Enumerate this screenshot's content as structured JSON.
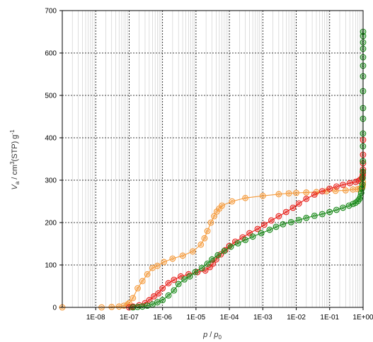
{
  "chart_data": {
    "type": "scatter",
    "title": "",
    "x_scale": "log",
    "xlim": [
      1e-09,
      1
    ],
    "ylim": [
      0,
      700
    ],
    "xlabel": {
      "main": "p",
      "sep": " / ",
      "base": "p",
      "sub": "0"
    },
    "ylabel": {
      "main": "V",
      "sub": "a",
      "unit_pre": " / cm",
      "sup": "3",
      "unit_mid": "(STP) g",
      "sup2": "-1"
    },
    "xtick_labels": [
      "1E-08",
      "1E-07",
      "1E-06",
      "1E-05",
      "1E-04",
      "1E-03",
      "1E-02",
      "1E-01",
      "1E+00"
    ],
    "xtick_values": [
      1e-08,
      1e-07,
      1e-06,
      1e-05,
      0.0001,
      0.001,
      0.01,
      0.1,
      1
    ],
    "yticks": [
      0,
      100,
      200,
      300,
      400,
      500,
      600,
      700
    ],
    "grid": true,
    "series": [
      {
        "color": "#f59a3a",
        "x": [
          1e-09,
          1.5e-08,
          3e-08,
          5e-08,
          7e-08,
          9e-08,
          1e-07,
          1.3e-07,
          1.8e-07,
          2.5e-07,
          3.5e-07,
          5e-07,
          7e-07,
          1.1e-06,
          2e-06,
          4e-06,
          8e-06,
          1.4e-05,
          1.8e-05,
          2.2e-05,
          2.8e-05,
          3.5e-05,
          4.2e-05,
          5e-05,
          6e-05,
          0.00012,
          0.0003,
          0.001,
          0.003,
          0.006,
          0.01,
          0.02,
          0.04,
          0.08,
          0.15,
          0.3,
          0.5,
          0.7,
          0.8,
          0.9,
          0.95,
          0.97,
          0.98,
          0.99
        ],
        "y": [
          0,
          0,
          1,
          2,
          4,
          7,
          10,
          22,
          45,
          62,
          78,
          93,
          98,
          107,
          115,
          122,
          132,
          148,
          163,
          180,
          200,
          215,
          226,
          233,
          240,
          250,
          258,
          263,
          267,
          269,
          270,
          271,
          272,
          274,
          275,
          276,
          278,
          279,
          280,
          281,
          283,
          286,
          290,
          296
        ]
      },
      {
        "color": "#e8221c",
        "x": [
          1e-07,
          1.3e-07,
          2e-07,
          3e-07,
          4e-07,
          5.5e-07,
          7.5e-07,
          1e-06,
          1.5e-06,
          2.2e-06,
          3.5e-06,
          6e-06,
          1.1e-05,
          1.9e-05,
          2.6e-05,
          3.2e-05,
          4e-05,
          5.5e-05,
          7.5e-05,
          0.0001,
          0.00015,
          0.00025,
          0.0004,
          0.0007,
          0.0011,
          0.0018,
          0.003,
          0.005,
          0.008,
          0.012,
          0.02,
          0.035,
          0.06,
          0.1,
          0.16,
          0.25,
          0.4,
          0.6,
          0.75,
          0.85,
          0.92,
          0.96,
          0.98,
          0.99,
          0.995,
          0.997,
          0.998,
          0.999
        ],
        "y": [
          0,
          2,
          5,
          10,
          17,
          26,
          33,
          45,
          57,
          65,
          73,
          78,
          83,
          87,
          95,
          103,
          113,
          125,
          135,
          145,
          155,
          165,
          175,
          185,
          195,
          205,
          215,
          225,
          235,
          245,
          256,
          266,
          274,
          280,
          285,
          289,
          293,
          296,
          299,
          302,
          305,
          308,
          312,
          318,
          325,
          340,
          360,
          395
        ]
      },
      {
        "color": "#1a8a1a",
        "x": [
          1.3e-07,
          1.8e-07,
          2.5e-07,
          3.5e-07,
          5e-07,
          7e-07,
          1e-06,
          1.5e-06,
          2.2e-06,
          3e-06,
          4.5e-06,
          6.5e-06,
          9.5e-06,
          1.5e-05,
          2.2e-05,
          3e-05,
          4.5e-05,
          7e-05,
          0.00011,
          0.00018,
          0.0003,
          0.0005,
          0.0009,
          0.0016,
          0.0025,
          0.004,
          0.007,
          0.012,
          0.02,
          0.035,
          0.06,
          0.1,
          0.16,
          0.25,
          0.38,
          0.5,
          0.6,
          0.7,
          0.78,
          0.84,
          0.88,
          0.92,
          0.95,
          0.97,
          0.98,
          0.99,
          0.993,
          0.995,
          0.996,
          0.997,
          0.9975,
          0.998,
          0.9985,
          0.999,
          0.9993,
          0.9995,
          0.9997,
          0.9998
        ],
        "y": [
          0,
          1,
          2,
          4,
          7,
          12,
          17,
          28,
          40,
          55,
          66,
          73,
          83,
          93,
          103,
          113,
          123,
          133,
          143,
          151,
          159,
          167,
          175,
          183,
          190,
          196,
          201,
          206,
          211,
          216,
          220,
          225,
          230,
          235,
          240,
          244,
          247,
          251,
          256,
          262,
          270,
          280,
          290,
          305,
          320,
          345,
          380,
          410,
          445,
          470,
          510,
          545,
          570,
          590,
          610,
          625,
          640,
          650
        ]
      }
    ]
  }
}
